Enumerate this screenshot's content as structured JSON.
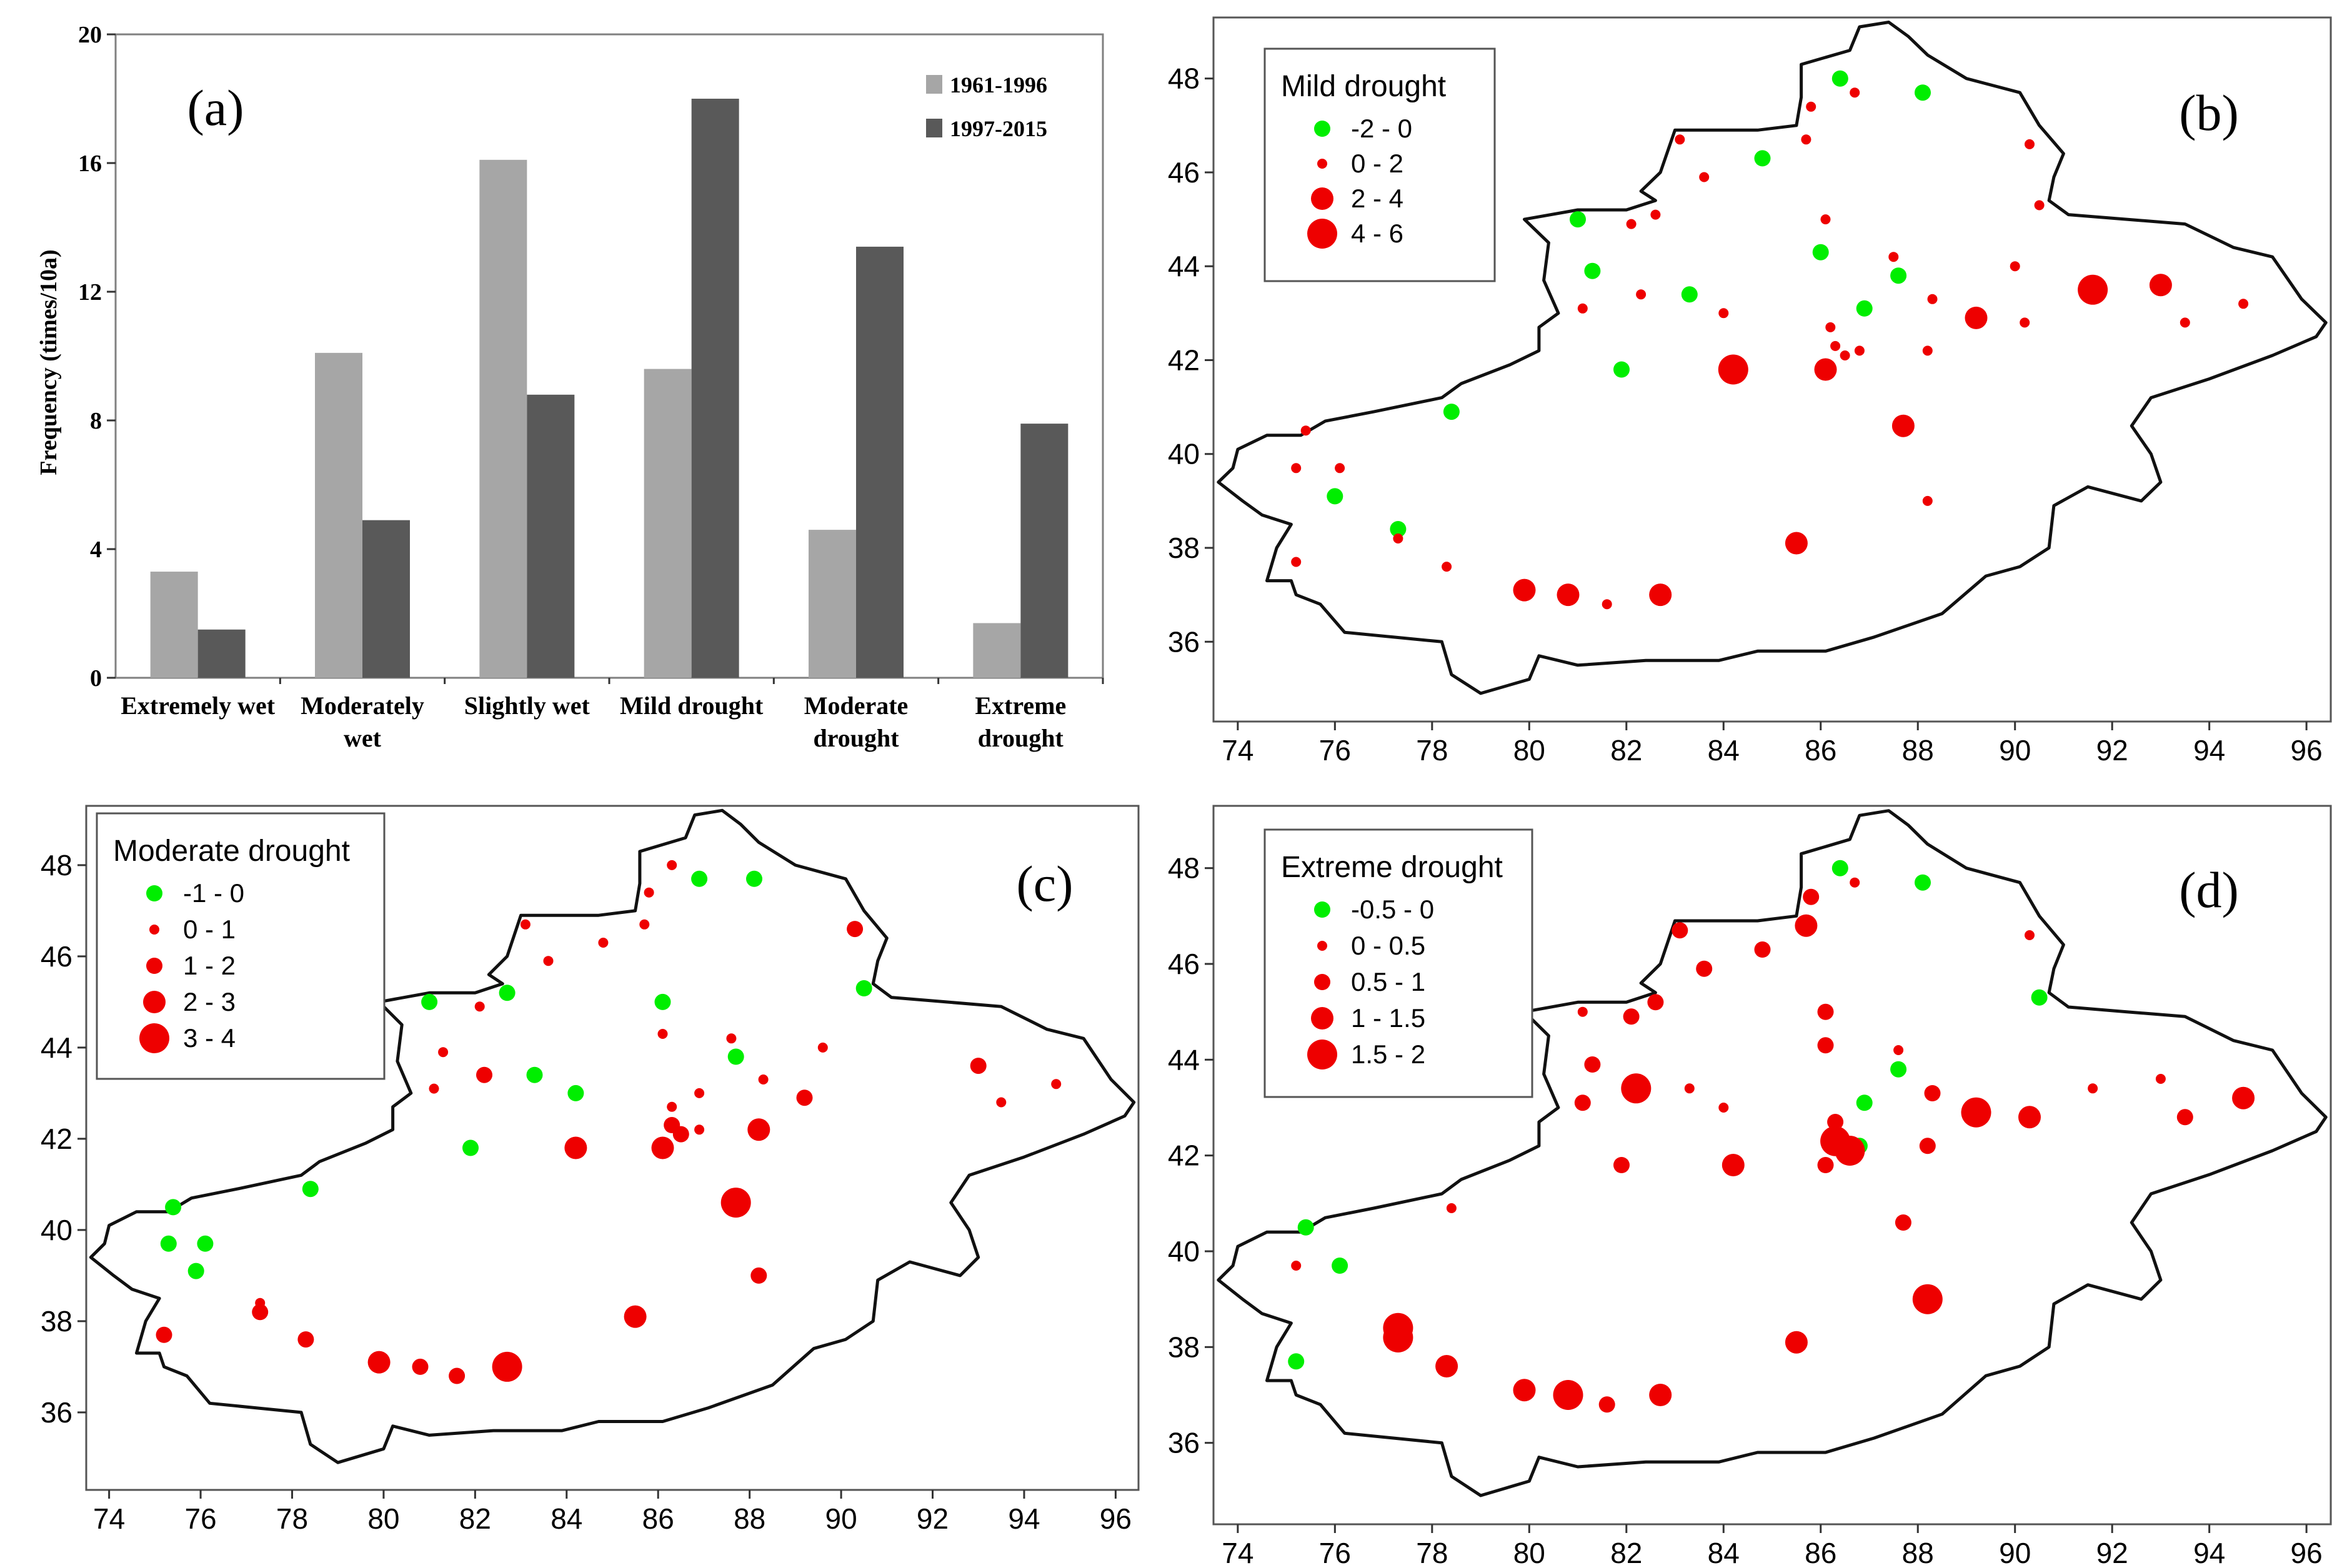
{
  "colors": {
    "bar_light": "#a6a6a6",
    "bar_dark": "#595959",
    "cooling_dot": "#00ee00",
    "warming_dot": "#ee0000",
    "outline": "#111111"
  },
  "chart_data": [
    {
      "panel": "(a)",
      "type": "bar",
      "categories": [
        [
          "Extremely wet"
        ],
        [
          "Moderately",
          "wet"
        ],
        [
          "Slightly wet"
        ],
        [
          "Mild drought"
        ],
        [
          "Moderate",
          "drought"
        ],
        [
          "Extreme",
          "drought"
        ]
      ],
      "series": [
        {
          "name": "1961-1996",
          "values": [
            3.3,
            10.1,
            16.1,
            9.6,
            4.6,
            1.7
          ],
          "color": "#a6a6a6"
        },
        {
          "name": "1997-2015",
          "values": [
            1.5,
            4.9,
            8.8,
            18.0,
            13.4,
            7.9
          ],
          "color": "#595959"
        }
      ],
      "ylabel": "Frequency (times/10a)",
      "ylim": [
        0,
        20
      ],
      "yticks": [
        0,
        4,
        8,
        12,
        16,
        20
      ],
      "legend_position": "top-right"
    },
    {
      "panel": "(b)",
      "type": "scatter",
      "legend_title": "Mild drought",
      "legend_position": "top-left",
      "classes": [
        {
          "label": "-2  -  0",
          "color": "green",
          "size": 1
        },
        {
          "label": "0  -  2",
          "color": "red",
          "size": 0
        },
        {
          "label": "2  -  4",
          "color": "red",
          "size": 2
        },
        {
          "label": "4  -  6",
          "color": "red",
          "size": 3
        }
      ],
      "xticks": [
        74,
        76,
        78,
        80,
        82,
        84,
        86,
        88,
        90,
        92,
        94,
        96
      ],
      "yticks": [
        36,
        38,
        40,
        42,
        44,
        46,
        48
      ],
      "points": [
        [
          86.4,
          48.0,
          0
        ],
        [
          88.1,
          47.7,
          0
        ],
        [
          84.8,
          46.3,
          0
        ],
        [
          81.0,
          45.0,
          0
        ],
        [
          81.3,
          43.9,
          0
        ],
        [
          83.3,
          43.4,
          0
        ],
        [
          86.0,
          44.3,
          0
        ],
        [
          87.6,
          43.8,
          0
        ],
        [
          86.9,
          43.1,
          0
        ],
        [
          81.9,
          41.8,
          0
        ],
        [
          78.4,
          40.9,
          0
        ],
        [
          76.0,
          39.1,
          0
        ],
        [
          77.3,
          38.4,
          0
        ],
        [
          83.1,
          46.7,
          1
        ],
        [
          83.6,
          45.9,
          1
        ],
        [
          82.1,
          44.9,
          1
        ],
        [
          82.6,
          45.1,
          1
        ],
        [
          85.7,
          46.7,
          1
        ],
        [
          85.8,
          47.4,
          1
        ],
        [
          86.7,
          47.7,
          1
        ],
        [
          90.3,
          46.6,
          1
        ],
        [
          90.5,
          45.3,
          1
        ],
        [
          86.1,
          45.0,
          1
        ],
        [
          87.5,
          44.2,
          1
        ],
        [
          90.0,
          44.0,
          1
        ],
        [
          81.1,
          43.1,
          1
        ],
        [
          82.3,
          43.4,
          1
        ],
        [
          84.0,
          43.0,
          1
        ],
        [
          86.2,
          42.7,
          1
        ],
        [
          86.3,
          42.3,
          1
        ],
        [
          86.5,
          42.1,
          1
        ],
        [
          86.8,
          42.2,
          1
        ],
        [
          88.2,
          42.2,
          1
        ],
        [
          88.3,
          43.3,
          1
        ],
        [
          90.2,
          42.8,
          1
        ],
        [
          93.5,
          42.8,
          1
        ],
        [
          94.7,
          43.2,
          1
        ],
        [
          88.2,
          39.0,
          1
        ],
        [
          75.4,
          40.5,
          1
        ],
        [
          75.2,
          39.7,
          1
        ],
        [
          76.1,
          39.7,
          1
        ],
        [
          77.3,
          38.2,
          1
        ],
        [
          78.3,
          37.6,
          1
        ],
        [
          75.2,
          37.7,
          1
        ],
        [
          81.6,
          36.8,
          1
        ],
        [
          86.1,
          41.8,
          2
        ],
        [
          87.7,
          40.6,
          2
        ],
        [
          85.5,
          38.1,
          2
        ],
        [
          79.9,
          37.1,
          2
        ],
        [
          80.8,
          37.0,
          2
        ],
        [
          82.7,
          37.0,
          2
        ],
        [
          89.2,
          42.9,
          2
        ],
        [
          93.0,
          43.6,
          2
        ],
        [
          84.2,
          41.8,
          3
        ],
        [
          91.6,
          43.5,
          3
        ]
      ]
    },
    {
      "panel": "(c)",
      "type": "scatter",
      "legend_title": "Moderate drought",
      "legend_position": "top-left",
      "classes": [
        {
          "label": "-1  -  0",
          "color": "green",
          "size": 1
        },
        {
          "label": "0  -  1",
          "color": "red",
          "size": 0
        },
        {
          "label": "1  -  2",
          "color": "red",
          "size": 1
        },
        {
          "label": "2  -  3",
          "color": "red",
          "size": 2
        },
        {
          "label": "3  -  4",
          "color": "red",
          "size": 3
        }
      ],
      "xticks": [
        74,
        76,
        78,
        80,
        82,
        84,
        86,
        88,
        90,
        92,
        94,
        96
      ],
      "yticks": [
        36,
        38,
        40,
        42,
        44,
        46,
        48
      ],
      "points": [
        [
          86.9,
          47.7,
          0
        ],
        [
          88.1,
          47.7,
          0
        ],
        [
          82.7,
          45.2,
          0
        ],
        [
          81.0,
          45.0,
          0
        ],
        [
          83.3,
          43.4,
          0
        ],
        [
          84.2,
          43.0,
          0
        ],
        [
          86.1,
          45.0,
          0
        ],
        [
          87.7,
          43.8,
          0
        ],
        [
          90.5,
          45.3,
          0
        ],
        [
          81.9,
          41.8,
          0
        ],
        [
          78.4,
          40.9,
          0
        ],
        [
          75.4,
          40.5,
          0
        ],
        [
          75.3,
          39.7,
          0
        ],
        [
          76.1,
          39.7,
          0
        ],
        [
          75.9,
          39.1,
          0
        ],
        [
          86.3,
          48.0,
          1
        ],
        [
          85.8,
          47.4,
          1
        ],
        [
          85.7,
          46.7,
          1
        ],
        [
          83.1,
          46.7,
          1
        ],
        [
          83.6,
          45.9,
          1
        ],
        [
          84.8,
          46.3,
          1
        ],
        [
          82.1,
          44.9,
          1
        ],
        [
          81.3,
          43.9,
          1
        ],
        [
          81.1,
          43.1,
          1
        ],
        [
          86.1,
          44.3,
          1
        ],
        [
          87.6,
          44.2,
          1
        ],
        [
          89.6,
          44.0,
          1
        ],
        [
          86.9,
          43.0,
          1
        ],
        [
          88.3,
          43.3,
          1
        ],
        [
          86.3,
          42.7,
          1
        ],
        [
          86.9,
          42.2,
          1
        ],
        [
          93.5,
          42.8,
          1
        ],
        [
          94.7,
          43.2,
          1
        ],
        [
          77.3,
          38.4,
          1
        ],
        [
          82.2,
          43.4,
          2
        ],
        [
          89.2,
          42.9,
          2
        ],
        [
          93.0,
          43.6,
          2
        ],
        [
          86.3,
          42.3,
          2
        ],
        [
          86.5,
          42.1,
          2
        ],
        [
          88.2,
          39.0,
          2
        ],
        [
          77.3,
          38.2,
          2
        ],
        [
          78.3,
          37.6,
          2
        ],
        [
          75.2,
          37.7,
          2
        ],
        [
          80.8,
          37.0,
          2
        ],
        [
          81.6,
          36.8,
          2
        ],
        [
          90.3,
          46.6,
          2
        ],
        [
          84.2,
          41.8,
          3
        ],
        [
          86.1,
          41.8,
          3
        ],
        [
          88.2,
          42.2,
          3
        ],
        [
          85.5,
          38.1,
          3
        ],
        [
          79.9,
          37.1,
          3
        ],
        [
          87.7,
          40.6,
          4
        ],
        [
          82.7,
          37.0,
          4
        ]
      ]
    },
    {
      "panel": "(d)",
      "type": "scatter",
      "legend_title": "Extreme drought",
      "legend_position": "top-left",
      "classes": [
        {
          "label": "-0.5  -  0",
          "color": "green",
          "size": 1
        },
        {
          "label": "0  -  0.5",
          "color": "red",
          "size": 0
        },
        {
          "label": "0.5  -  1",
          "color": "red",
          "size": 1
        },
        {
          "label": "1  -  1.5",
          "color": "red",
          "size": 2
        },
        {
          "label": "1.5  -  2",
          "color": "red",
          "size": 3
        }
      ],
      "xticks": [
        74,
        76,
        78,
        80,
        82,
        84,
        86,
        88,
        90,
        92,
        94,
        96
      ],
      "yticks": [
        36,
        38,
        40,
        42,
        44,
        46,
        48
      ],
      "points": [
        [
          86.4,
          48.0,
          0
        ],
        [
          88.1,
          47.7,
          0
        ],
        [
          90.5,
          45.3,
          0
        ],
        [
          87.6,
          43.8,
          0
        ],
        [
          86.9,
          43.1,
          0
        ],
        [
          86.8,
          42.2,
          0
        ],
        [
          75.4,
          40.5,
          0
        ],
        [
          76.1,
          39.7,
          0
        ],
        [
          75.2,
          37.7,
          0
        ],
        [
          86.7,
          47.7,
          1
        ],
        [
          90.3,
          46.6,
          1
        ],
        [
          81.1,
          45.0,
          1
        ],
        [
          87.6,
          44.2,
          1
        ],
        [
          83.3,
          43.4,
          1
        ],
        [
          84.0,
          43.0,
          1
        ],
        [
          91.6,
          43.4,
          1
        ],
        [
          93.0,
          43.6,
          1
        ],
        [
          78.4,
          40.9,
          1
        ],
        [
          75.2,
          39.7,
          1
        ],
        [
          83.1,
          46.7,
          2
        ],
        [
          83.6,
          45.9,
          2
        ],
        [
          84.8,
          46.3,
          2
        ],
        [
          85.8,
          47.4,
          2
        ],
        [
          82.6,
          45.2,
          2
        ],
        [
          82.1,
          44.9,
          2
        ],
        [
          86.1,
          45.0,
          2
        ],
        [
          86.1,
          44.3,
          2
        ],
        [
          81.3,
          43.9,
          2
        ],
        [
          81.1,
          43.1,
          2
        ],
        [
          88.3,
          43.3,
          2
        ],
        [
          88.2,
          42.2,
          2
        ],
        [
          86.3,
          42.7,
          2
        ],
        [
          86.1,
          41.8,
          2
        ],
        [
          81.9,
          41.8,
          2
        ],
        [
          87.7,
          40.6,
          2
        ],
        [
          93.5,
          42.8,
          2
        ],
        [
          81.6,
          36.8,
          2
        ],
        [
          85.7,
          46.8,
          3
        ],
        [
          84.2,
          41.8,
          3
        ],
        [
          78.3,
          37.6,
          3
        ],
        [
          79.9,
          37.1,
          3
        ],
        [
          82.7,
          37.0,
          3
        ],
        [
          85.5,
          38.1,
          3
        ],
        [
          90.3,
          42.8,
          3
        ],
        [
          94.7,
          43.2,
          3
        ],
        [
          82.2,
          43.4,
          4
        ],
        [
          89.2,
          42.9,
          4
        ],
        [
          86.3,
          42.3,
          4
        ],
        [
          86.6,
          42.1,
          4
        ],
        [
          88.2,
          39.0,
          4
        ],
        [
          77.3,
          38.4,
          4
        ],
        [
          77.3,
          38.2,
          4
        ],
        [
          80.8,
          37.0,
          4
        ]
      ]
    }
  ],
  "boundary": [
    [
      75.8,
      40.7
    ],
    [
      76.8,
      40.9
    ],
    [
      78.2,
      41.2
    ],
    [
      78.6,
      41.5
    ],
    [
      79.6,
      41.9
    ],
    [
      80.2,
      42.2
    ],
    [
      80.2,
      42.7
    ],
    [
      80.6,
      43.0
    ],
    [
      80.3,
      43.7
    ],
    [
      80.4,
      44.5
    ],
    [
      79.9,
      45.0
    ],
    [
      81.0,
      45.2
    ],
    [
      82.0,
      45.2
    ],
    [
      82.6,
      45.4
    ],
    [
      82.3,
      45.6
    ],
    [
      82.7,
      46.0
    ],
    [
      83.0,
      46.9
    ],
    [
      84.7,
      46.9
    ],
    [
      85.5,
      47.0
    ],
    [
      85.6,
      47.6
    ],
    [
      85.6,
      48.3
    ],
    [
      86.6,
      48.6
    ],
    [
      86.8,
      49.1
    ],
    [
      87.4,
      49.2
    ],
    [
      87.8,
      48.9
    ],
    [
      88.2,
      48.5
    ],
    [
      89.0,
      48.0
    ],
    [
      90.1,
      47.7
    ],
    [
      90.5,
      47.0
    ],
    [
      91.0,
      46.4
    ],
    [
      90.8,
      45.9
    ],
    [
      90.7,
      45.4
    ],
    [
      91.1,
      45.1
    ],
    [
      92.3,
      45.0
    ],
    [
      93.5,
      44.9
    ],
    [
      94.5,
      44.4
    ],
    [
      95.3,
      44.2
    ],
    [
      95.9,
      43.3
    ],
    [
      96.4,
      42.8
    ],
    [
      96.2,
      42.5
    ],
    [
      95.3,
      42.1
    ],
    [
      94.0,
      41.6
    ],
    [
      92.8,
      41.2
    ],
    [
      92.4,
      40.6
    ],
    [
      92.8,
      40.0
    ],
    [
      93.0,
      39.4
    ],
    [
      92.6,
      39.0
    ],
    [
      91.5,
      39.3
    ],
    [
      90.8,
      38.9
    ],
    [
      90.7,
      38.0
    ],
    [
      90.1,
      37.6
    ],
    [
      89.4,
      37.4
    ],
    [
      88.5,
      36.6
    ],
    [
      87.1,
      36.1
    ],
    [
      86.1,
      35.8
    ],
    [
      84.7,
      35.8
    ],
    [
      83.9,
      35.6
    ],
    [
      82.4,
      35.6
    ],
    [
      81.0,
      35.5
    ],
    [
      80.2,
      35.7
    ],
    [
      80.0,
      35.2
    ],
    [
      79.0,
      34.9
    ],
    [
      78.4,
      35.3
    ],
    [
      78.2,
      36.0
    ],
    [
      77.2,
      36.1
    ],
    [
      76.2,
      36.2
    ],
    [
      75.7,
      36.8
    ],
    [
      75.2,
      37.0
    ],
    [
      75.1,
      37.3
    ],
    [
      74.6,
      37.3
    ],
    [
      74.8,
      38.0
    ],
    [
      75.1,
      38.5
    ],
    [
      74.5,
      38.7
    ],
    [
      74.1,
      39.0
    ],
    [
      73.6,
      39.4
    ],
    [
      73.9,
      39.7
    ],
    [
      74.0,
      40.1
    ],
    [
      74.6,
      40.4
    ],
    [
      75.3,
      40.4
    ]
  ]
}
